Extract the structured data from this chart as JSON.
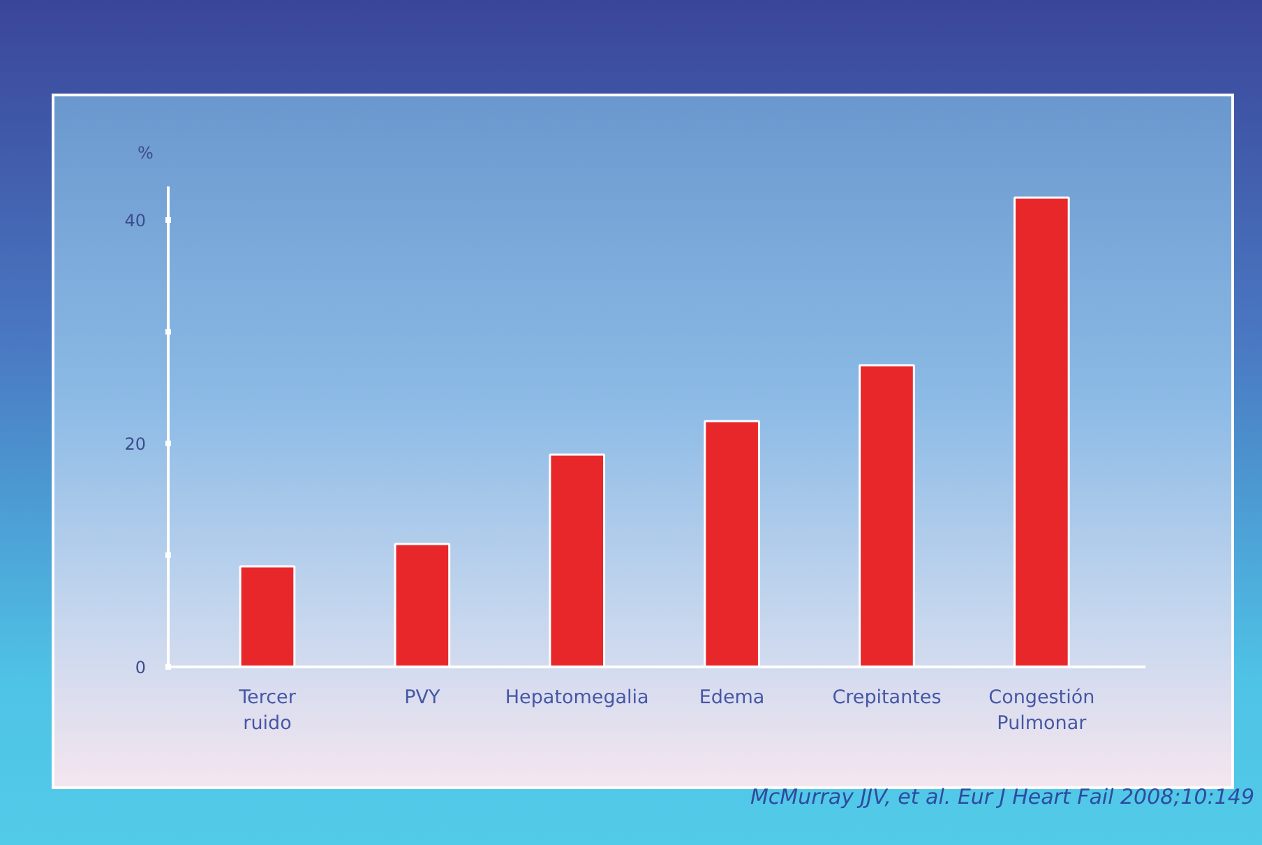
{
  "chart_data": {
    "type": "bar",
    "ylabel": "%",
    "categories": [
      "Tercer\nruido",
      "PVY",
      "Hepatomegalia",
      "Edema",
      "Crepitantes",
      "Congestión\nPulmonar"
    ],
    "values": [
      9,
      11,
      19,
      22,
      27,
      42
    ],
    "color": "#e8272a",
    "ylim": [
      0,
      43
    ],
    "yticks": [
      0,
      {
        "value": 10,
        "label": null
      },
      20,
      {
        "value": 30,
        "label": null
      },
      40
    ],
    "grid": false,
    "annotations": [
      "McMurray JJV, et al. Eur J Heart Fail 2008;10:149"
    ]
  }
}
